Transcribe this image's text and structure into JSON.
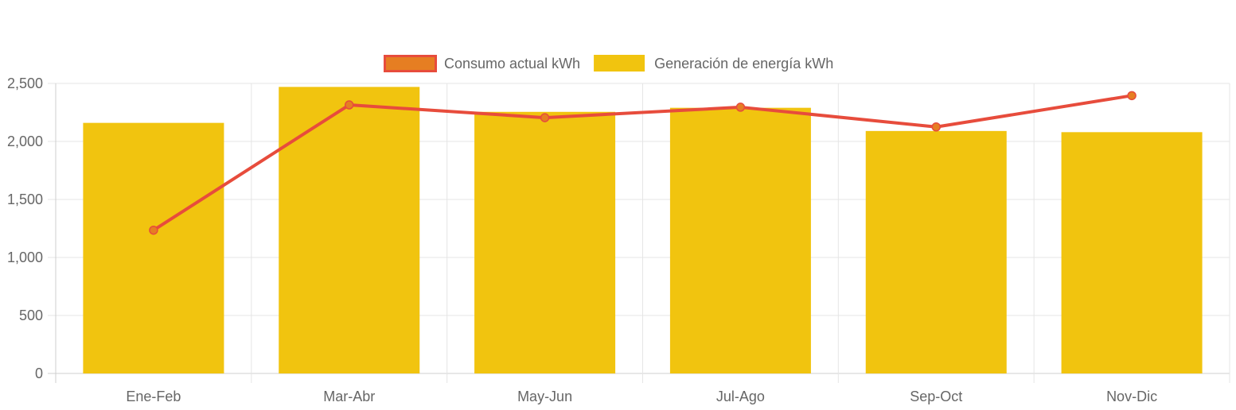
{
  "chart_data": {
    "type": "bar",
    "categories": [
      "Ene-Feb",
      "Mar-Abr",
      "May-Jun",
      "Jul-Ago",
      "Sep-Oct",
      "Nov-Dic"
    ],
    "series": [
      {
        "name": "Consumo actual kWh",
        "type": "line",
        "values": [
          1235,
          2315,
          2205,
          2295,
          2125,
          2395
        ],
        "color": "#e74c3c",
        "point_color": "#e67e22"
      },
      {
        "name": "Generación de energía kWh",
        "type": "bar",
        "values": [
          2160,
          2470,
          2255,
          2290,
          2090,
          2080
        ],
        "color": "#f1c40f"
      }
    ],
    "y_ticks": [
      "0",
      "500",
      "1,000",
      "1,500",
      "2,000",
      "2,500"
    ],
    "y_tick_values": [
      0,
      500,
      1000,
      1500,
      2000,
      2500
    ],
    "ylim": [
      0,
      2500
    ],
    "grid": true,
    "legend_position": "top-center",
    "title": "",
    "xlabel": "",
    "ylabel": ""
  }
}
